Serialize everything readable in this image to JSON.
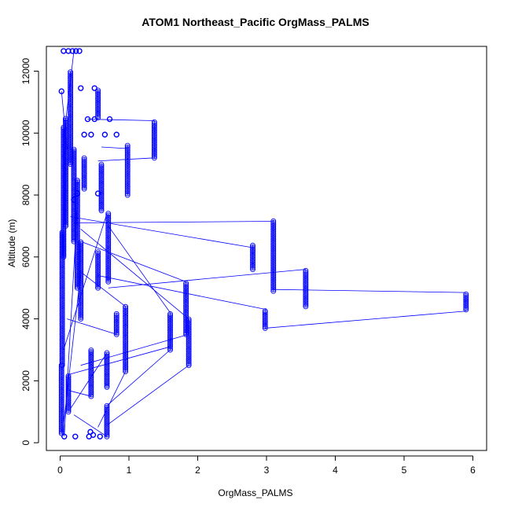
{
  "chart_data": {
    "type": "scatter",
    "title": "ATOM1 Northeast_Pacific OrgMass_PALMS",
    "xlabel": "OrgMass_PALMS",
    "ylabel": "Altitude (m)",
    "xlim": [
      -0.2,
      6.2
    ],
    "ylim": [
      -250,
      12800
    ],
    "xticks": [
      0,
      1,
      2,
      3,
      4,
      5,
      6
    ],
    "yticks": [
      0,
      2000,
      4000,
      6000,
      8000,
      10000,
      12000
    ],
    "grid": false,
    "legend": "none",
    "color": "#0000ff",
    "marker": "open-circle",
    "connected": true,
    "columns": [
      {
        "x": 0.02,
        "y0": 300,
        "y1": 2500
      },
      {
        "x": 0.03,
        "y0": 2500,
        "y1": 6800
      },
      {
        "x": 0.05,
        "y0": 6000,
        "y1": 10200
      },
      {
        "x": 0.08,
        "y0": 7000,
        "y1": 10500
      },
      {
        "x": 0.12,
        "y0": 1000,
        "y1": 2200
      },
      {
        "x": 0.15,
        "y0": 9000,
        "y1": 12000
      },
      {
        "x": 0.2,
        "y0": 6500,
        "y1": 9500
      },
      {
        "x": 0.25,
        "y0": 5000,
        "y1": 8500
      },
      {
        "x": 0.3,
        "y0": 4000,
        "y1": 6500
      },
      {
        "x": 0.35,
        "y0": 8200,
        "y1": 9200
      },
      {
        "x": 0.45,
        "y0": 1500,
        "y1": 3000
      },
      {
        "x": 0.55,
        "y0": 5000,
        "y1": 6200
      },
      {
        "x": 0.55,
        "y0": 10500,
        "y1": 11400
      },
      {
        "x": 0.6,
        "y0": 7500,
        "y1": 9000
      },
      {
        "x": 0.68,
        "y0": 200,
        "y1": 1200
      },
      {
        "x": 0.68,
        "y0": 1800,
        "y1": 2900
      },
      {
        "x": 0.7,
        "y0": 5200,
        "y1": 7400
      },
      {
        "x": 0.82,
        "y0": 3500,
        "y1": 4200
      },
      {
        "x": 0.95,
        "y0": 2300,
        "y1": 4400
      },
      {
        "x": 0.98,
        "y0": 8000,
        "y1": 9600
      },
      {
        "x": 1.37,
        "y0": 9200,
        "y1": 10400
      },
      {
        "x": 1.6,
        "y0": 3000,
        "y1": 4200
      },
      {
        "x": 1.83,
        "y0": 3500,
        "y1": 5200
      },
      {
        "x": 1.87,
        "y0": 2500,
        "y1": 4000
      },
      {
        "x": 2.8,
        "y0": 5600,
        "y1": 6400
      },
      {
        "x": 2.98,
        "y0": 3700,
        "y1": 4300
      },
      {
        "x": 3.1,
        "y0": 4900,
        "y1": 7200
      },
      {
        "x": 3.57,
        "y0": 4400,
        "y1": 5600
      },
      {
        "x": 5.9,
        "y0": 4300,
        "y1": 4800
      }
    ],
    "points": [
      {
        "x": 0.05,
        "y": 12650
      },
      {
        "x": 0.12,
        "y": 12650
      },
      {
        "x": 0.18,
        "y": 12650
      },
      {
        "x": 0.23,
        "y": 12650
      },
      {
        "x": 0.28,
        "y": 12650
      },
      {
        "x": 0.02,
        "y": 11350
      },
      {
        "x": 0.3,
        "y": 11450
      },
      {
        "x": 0.5,
        "y": 11450
      },
      {
        "x": 0.4,
        "y": 10450
      },
      {
        "x": 0.72,
        "y": 10450
      },
      {
        "x": 0.5,
        "y": 10450
      },
      {
        "x": 0.35,
        "y": 9950
      },
      {
        "x": 0.45,
        "y": 9950
      },
      {
        "x": 0.65,
        "y": 9950
      },
      {
        "x": 0.82,
        "y": 9950
      },
      {
        "x": 0.25,
        "y": 8050
      },
      {
        "x": 0.55,
        "y": 8050
      },
      {
        "x": 0.2,
        "y": 7850
      },
      {
        "x": 0.06,
        "y": 200
      },
      {
        "x": 0.22,
        "y": 200
      },
      {
        "x": 0.42,
        "y": 200
      },
      {
        "x": 0.48,
        "y": 250
      },
      {
        "x": 0.58,
        "y": 200
      },
      {
        "x": 0.44,
        "y": 350
      }
    ],
    "segments": [
      {
        "x1": 0.4,
        "y1": 10450,
        "x2": 1.37,
        "y2": 10400
      },
      {
        "x1": 0.55,
        "y1": 9100,
        "x2": 1.37,
        "y2": 9200
      },
      {
        "x1": 0.6,
        "y1": 9550,
        "x2": 0.98,
        "y2": 9500
      },
      {
        "x1": 0.2,
        "y1": 7100,
        "x2": 3.1,
        "y2": 7150
      },
      {
        "x1": 0.15,
        "y1": 7300,
        "x2": 2.8,
        "y2": 6300
      },
      {
        "x1": 0.3,
        "y1": 6500,
        "x2": 1.83,
        "y2": 5200
      },
      {
        "x1": 0.55,
        "y1": 5400,
        "x2": 3.0,
        "y2": 4300
      },
      {
        "x1": 0.7,
        "y1": 5000,
        "x2": 3.57,
        "y2": 5600
      },
      {
        "x1": 3.1,
        "y1": 4950,
        "x2": 5.9,
        "y2": 4850
      },
      {
        "x1": 2.98,
        "y1": 3700,
        "x2": 5.9,
        "y2": 4250
      },
      {
        "x1": 0.3,
        "y1": 6900,
        "x2": 1.87,
        "y2": 4000
      },
      {
        "x1": 0.7,
        "y1": 7000,
        "x2": 1.6,
        "y2": 4200
      },
      {
        "x1": 0.12,
        "y1": 2200,
        "x2": 1.6,
        "y2": 3100
      },
      {
        "x1": 0.3,
        "y1": 2500,
        "x2": 1.87,
        "y2": 3500
      },
      {
        "x1": 0.68,
        "y1": 1200,
        "x2": 1.6,
        "y2": 3000
      },
      {
        "x1": 0.7,
        "y1": 600,
        "x2": 1.87,
        "y2": 2500
      },
      {
        "x1": 0.55,
        "y1": 500,
        "x2": 0.95,
        "y2": 2300
      },
      {
        "x1": 0.15,
        "y1": 1100,
        "x2": 0.68,
        "y2": 2900
      },
      {
        "x1": 0.25,
        "y1": 5600,
        "x2": 0.95,
        "y2": 4400
      },
      {
        "x1": 0.1,
        "y1": 4000,
        "x2": 0.82,
        "y2": 3500
      },
      {
        "x1": 0.05,
        "y1": 3000,
        "x2": 0.68,
        "y2": 7400
      },
      {
        "x1": 0.05,
        "y1": 9800,
        "x2": 0.2,
        "y2": 12650
      },
      {
        "x1": 0.02,
        "y1": 11350,
        "x2": 0.1,
        "y2": 9500
      },
      {
        "x1": 0.3,
        "y1": 5500,
        "x2": 0.03,
        "y2": 200
      },
      {
        "x1": 0.25,
        "y1": 7600,
        "x2": 0.06,
        "y2": 200
      },
      {
        "x1": 0.1,
        "y1": 1700,
        "x2": 0.45,
        "y2": 1500
      },
      {
        "x1": 0.2,
        "y1": 900,
        "x2": 0.68,
        "y2": 200
      }
    ]
  }
}
